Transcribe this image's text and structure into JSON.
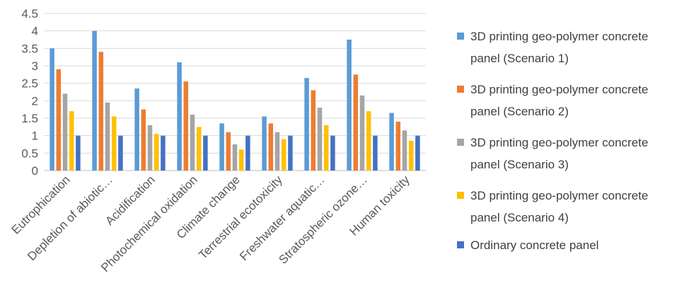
{
  "chart_data": {
    "type": "bar",
    "categories": [
      "Eutrophication",
      "Depletion of abiotic…",
      "Acidification",
      "Photochemical oxidation",
      "Climate change",
      "Terrestrial  ecotoxicity",
      "Freshwater aquatic…",
      "Stratospheric ozone…",
      "Human toxicity"
    ],
    "series": [
      {
        "name": "3D printing geo-polymer concrete panel (Scenario 1)",
        "color": "#5B9BD5",
        "values": [
          3.5,
          4.0,
          2.35,
          3.1,
          1.35,
          1.55,
          2.65,
          3.75,
          1.65
        ]
      },
      {
        "name": "3D printing geo-polymer concrete panel (Scenario 2)",
        "color": "#ED7D31",
        "values": [
          2.9,
          3.4,
          1.75,
          2.55,
          1.1,
          1.35,
          2.3,
          2.75,
          1.4
        ]
      },
      {
        "name": "3D printing geo-polymer concrete panel (Scenario 3)",
        "color": "#A5A5A5",
        "values": [
          2.2,
          1.95,
          1.3,
          1.6,
          0.75,
          1.1,
          1.8,
          2.15,
          1.15
        ]
      },
      {
        "name": "3D printing geo-polymer concrete panel (Scenario 4)",
        "color": "#FFC000",
        "values": [
          1.7,
          1.55,
          1.05,
          1.25,
          0.6,
          0.9,
          1.3,
          1.7,
          0.85
        ]
      },
      {
        "name": "Ordinary concrete panel",
        "color": "#4472C4",
        "values": [
          1.0,
          1.0,
          1.0,
          1.0,
          1.0,
          1.0,
          1.0,
          1.0,
          1.0
        ]
      }
    ],
    "yticks": [
      "0",
      "0.5",
      "1",
      "1.5",
      "2",
      "2.5",
      "3",
      "3.5",
      "4",
      "4.5"
    ],
    "ylim": [
      0,
      4.5
    ],
    "grid": true,
    "legend_position": "right"
  },
  "legend": [
    {
      "line1": "3D printing geo-polymer concrete",
      "line2": "panel (Scenario  1)",
      "color": "#5B9BD5"
    },
    {
      "line1": "3D printing geo-polymer concrete",
      "line2": "panel (Scenario  2)",
      "color": "#ED7D31"
    },
    {
      "line1": "3D printing geo-polymer concrete",
      "line2": "panel (Scenario  3)",
      "color": "#A5A5A5"
    },
    {
      "line1": "3D printing geo-polymer concrete",
      "line2": "panel (Scenario  4)",
      "color": "#FFC000"
    },
    {
      "line1": "Ordinary concrete panel",
      "line2": "",
      "color": "#4472C4"
    }
  ]
}
